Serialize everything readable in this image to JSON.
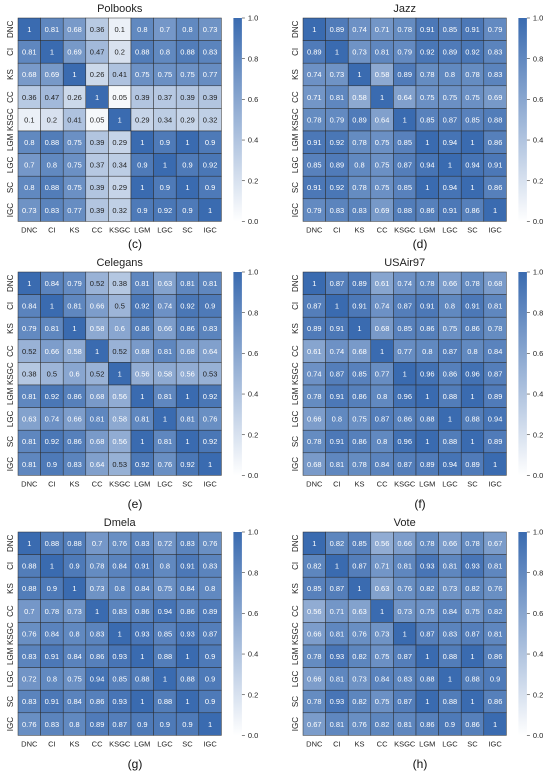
{
  "figure_labels": [
    "(c)",
    "(d)",
    "(e)",
    "(f)",
    "(g)",
    "(h)"
  ],
  "colorbar_ticks": [
    "0.0",
    "0.2",
    "0.4",
    "0.6",
    "0.8",
    "1.0"
  ],
  "colors": {
    "low": "#ffffff",
    "high": "#3a6bb0",
    "grid": "#2b2b2b",
    "text_dark": "#222222",
    "text_light": "#ffffff"
  },
  "chart_data": [
    {
      "type": "heatmap",
      "title": "Polbooks",
      "label": "(c)",
      "categories": [
        "DNC",
        "CI",
        "KS",
        "CC",
        "KSGC",
        "LGM",
        "LGC",
        "SC",
        "IGC"
      ],
      "vlim": [
        0.0,
        1.0
      ],
      "colorbar": true,
      "values": [
        [
          1,
          0.81,
          0.68,
          0.36,
          0.1,
          0.8,
          0.7,
          0.8,
          0.73
        ],
        [
          0.81,
          1,
          0.69,
          0.47,
          0.2,
          0.88,
          0.8,
          0.88,
          0.83
        ],
        [
          0.68,
          0.69,
          1,
          0.26,
          0.41,
          0.75,
          0.75,
          0.75,
          0.77
        ],
        [
          0.36,
          0.47,
          0.26,
          1,
          0.05,
          0.39,
          0.37,
          0.39,
          0.39
        ],
        [
          0.1,
          0.2,
          0.41,
          0.05,
          1,
          0.29,
          0.34,
          0.29,
          0.32
        ],
        [
          0.8,
          0.88,
          0.75,
          0.39,
          0.29,
          1,
          0.9,
          1,
          0.9
        ],
        [
          0.7,
          0.8,
          0.75,
          0.37,
          0.34,
          0.9,
          1,
          0.9,
          0.92
        ],
        [
          0.8,
          0.88,
          0.75,
          0.39,
          0.29,
          1,
          0.9,
          1,
          0.9
        ],
        [
          0.73,
          0.83,
          0.77,
          0.39,
          0.32,
          0.9,
          0.92,
          0.9,
          1
        ]
      ]
    },
    {
      "type": "heatmap",
      "title": "Jazz",
      "label": "(d)",
      "categories": [
        "DNC",
        "CI",
        "KS",
        "CC",
        "KSGC",
        "LGM",
        "LGC",
        "SC",
        "IGC"
      ],
      "vlim": [
        0.0,
        1.0
      ],
      "colorbar": true,
      "values": [
        [
          1,
          0.89,
          0.74,
          0.71,
          0.78,
          0.91,
          0.85,
          0.91,
          0.79
        ],
        [
          0.89,
          1,
          0.73,
          0.81,
          0.79,
          0.92,
          0.89,
          0.92,
          0.83
        ],
        [
          0.74,
          0.73,
          1,
          0.58,
          0.89,
          0.78,
          0.8,
          0.78,
          0.83
        ],
        [
          0.71,
          0.81,
          0.58,
          1,
          0.64,
          0.75,
          0.75,
          0.75,
          0.69
        ],
        [
          0.78,
          0.79,
          0.89,
          0.64,
          1,
          0.85,
          0.87,
          0.85,
          0.88
        ],
        [
          0.91,
          0.92,
          0.78,
          0.75,
          0.85,
          1,
          0.94,
          1,
          0.86
        ],
        [
          0.85,
          0.89,
          0.8,
          0.75,
          0.87,
          0.94,
          1,
          0.94,
          0.91
        ],
        [
          0.91,
          0.92,
          0.78,
          0.75,
          0.85,
          1,
          0.94,
          1,
          0.86
        ],
        [
          0.79,
          0.83,
          0.83,
          0.69,
          0.88,
          0.86,
          0.91,
          0.86,
          1
        ]
      ]
    },
    {
      "type": "heatmap",
      "title": "Celegans",
      "label": "(e)",
      "categories": [
        "DNC",
        "CI",
        "KS",
        "CC",
        "KSGC",
        "LGM",
        "LGC",
        "SC",
        "IGC"
      ],
      "vlim": [
        0.0,
        1.0
      ],
      "colorbar": true,
      "values": [
        [
          1,
          0.84,
          0.79,
          0.52,
          0.38,
          0.81,
          0.63,
          0.81,
          0.81
        ],
        [
          0.84,
          1,
          0.81,
          0.66,
          0.5,
          0.92,
          0.74,
          0.92,
          0.9
        ],
        [
          0.79,
          0.81,
          1,
          0.58,
          0.6,
          0.86,
          0.66,
          0.86,
          0.83
        ],
        [
          0.52,
          0.66,
          0.58,
          1,
          0.52,
          0.68,
          0.81,
          0.68,
          0.64
        ],
        [
          0.38,
          0.5,
          0.6,
          0.52,
          1,
          0.56,
          0.58,
          0.56,
          0.53
        ],
        [
          0.81,
          0.92,
          0.86,
          0.68,
          0.56,
          1,
          0.81,
          1,
          0.92
        ],
        [
          0.63,
          0.74,
          0.66,
          0.81,
          0.58,
          0.81,
          1,
          0.81,
          0.76
        ],
        [
          0.81,
          0.92,
          0.86,
          0.68,
          0.56,
          1,
          0.81,
          1,
          0.92
        ],
        [
          0.81,
          0.9,
          0.83,
          0.64,
          0.53,
          0.92,
          0.76,
          0.92,
          1
        ]
      ]
    },
    {
      "type": "heatmap",
      "title": "USAir97",
      "label": "(f)",
      "categories": [
        "DNC",
        "CI",
        "KS",
        "CC",
        "KSGC",
        "LGM",
        "LGC",
        "SC",
        "IGC"
      ],
      "vlim": [
        0.0,
        1.0
      ],
      "colorbar": true,
      "values": [
        [
          1,
          0.87,
          0.89,
          0.61,
          0.74,
          0.78,
          0.66,
          0.78,
          0.68
        ],
        [
          0.87,
          1,
          0.91,
          0.74,
          0.87,
          0.91,
          0.8,
          0.91,
          0.81
        ],
        [
          0.89,
          0.91,
          1,
          0.68,
          0.85,
          0.86,
          0.75,
          0.86,
          0.78
        ],
        [
          0.61,
          0.74,
          0.68,
          1,
          0.77,
          0.8,
          0.87,
          0.8,
          0.84
        ],
        [
          0.74,
          0.87,
          0.85,
          0.77,
          1,
          0.96,
          0.86,
          0.96,
          0.87
        ],
        [
          0.78,
          0.91,
          0.86,
          0.8,
          0.96,
          1,
          0.88,
          1,
          0.89
        ],
        [
          0.66,
          0.8,
          0.75,
          0.87,
          0.86,
          0.88,
          1,
          0.88,
          0.94
        ],
        [
          0.78,
          0.91,
          0.86,
          0.8,
          0.96,
          1,
          0.88,
          1,
          0.89
        ],
        [
          0.68,
          0.81,
          0.78,
          0.84,
          0.87,
          0.89,
          0.94,
          0.89,
          1
        ]
      ]
    },
    {
      "type": "heatmap",
      "title": "Dmela",
      "label": "(g)",
      "categories": [
        "DNC",
        "CI",
        "KS",
        "CC",
        "KSGC",
        "LGM",
        "LGC",
        "SC",
        "IGC"
      ],
      "vlim": [
        0.0,
        1.0
      ],
      "colorbar": true,
      "values": [
        [
          1,
          0.88,
          0.88,
          0.7,
          0.76,
          0.83,
          0.72,
          0.83,
          0.76
        ],
        [
          0.88,
          1,
          0.9,
          0.78,
          0.84,
          0.91,
          0.8,
          0.91,
          0.83
        ],
        [
          0.88,
          0.9,
          1,
          0.73,
          0.8,
          0.84,
          0.75,
          0.84,
          0.8
        ],
        [
          0.7,
          0.78,
          0.73,
          1,
          0.83,
          0.86,
          0.94,
          0.86,
          0.89
        ],
        [
          0.76,
          0.84,
          0.8,
          0.83,
          1,
          0.93,
          0.85,
          0.93,
          0.87
        ],
        [
          0.83,
          0.91,
          0.84,
          0.86,
          0.93,
          1,
          0.88,
          1,
          0.9
        ],
        [
          0.72,
          0.8,
          0.75,
          0.94,
          0.85,
          0.88,
          1,
          0.88,
          0.9
        ],
        [
          0.83,
          0.91,
          0.84,
          0.86,
          0.93,
          1,
          0.88,
          1,
          0.9
        ],
        [
          0.76,
          0.83,
          0.8,
          0.89,
          0.87,
          0.9,
          0.9,
          0.9,
          1
        ]
      ]
    },
    {
      "type": "heatmap",
      "title": "Vote",
      "label": "(h)",
      "categories": [
        "DNC",
        "CI",
        "KS",
        "CC",
        "KSGC",
        "LGM",
        "LGC",
        "SC",
        "IGC"
      ],
      "vlim": [
        0.0,
        1.0
      ],
      "colorbar": true,
      "values": [
        [
          1,
          0.82,
          0.85,
          0.56,
          0.66,
          0.78,
          0.66,
          0.78,
          0.67
        ],
        [
          0.82,
          1,
          0.87,
          0.71,
          0.81,
          0.93,
          0.81,
          0.93,
          0.81
        ],
        [
          0.85,
          0.87,
          1,
          0.63,
          0.76,
          0.82,
          0.73,
          0.82,
          0.76
        ],
        [
          0.56,
          0.71,
          0.63,
          1,
          0.73,
          0.75,
          0.84,
          0.75,
          0.82
        ],
        [
          0.66,
          0.81,
          0.76,
          0.73,
          1,
          0.87,
          0.83,
          0.87,
          0.81
        ],
        [
          0.78,
          0.93,
          0.82,
          0.75,
          0.87,
          1,
          0.88,
          1,
          0.86
        ],
        [
          0.66,
          0.81,
          0.73,
          0.84,
          0.83,
          0.88,
          1,
          0.88,
          0.9
        ],
        [
          0.78,
          0.93,
          0.82,
          0.75,
          0.87,
          1,
          0.88,
          1,
          0.86
        ],
        [
          0.67,
          0.81,
          0.76,
          0.82,
          0.81,
          0.86,
          0.9,
          0.86,
          1
        ]
      ]
    }
  ]
}
